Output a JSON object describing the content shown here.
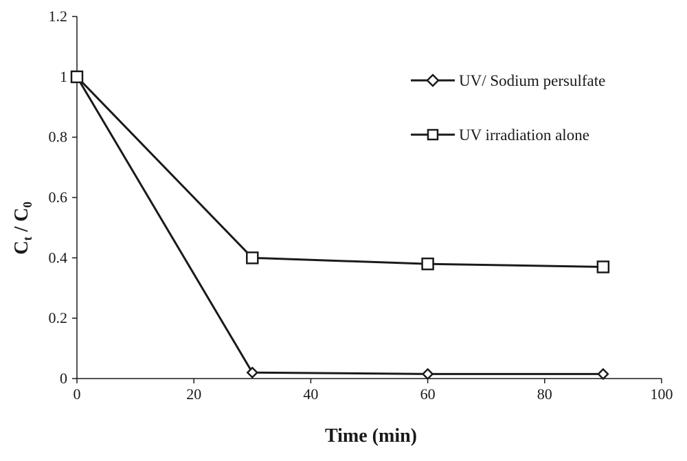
{
  "chart_data": {
    "type": "line",
    "title": "",
    "xlabel": "Time (min)",
    "ylabel": {
      "main": "C",
      "sub1": "t",
      "sep": " / ",
      "main2": "C",
      "sub2": "0"
    },
    "xlim": [
      0,
      100
    ],
    "ylim": [
      0,
      1.2
    ],
    "xticks": [
      "0",
      "20",
      "40",
      "60",
      "80",
      "100"
    ],
    "yticks": [
      "0",
      "0.2",
      "0.4",
      "0.6",
      "0.8",
      "1",
      "1.2"
    ],
    "grid": false,
    "legend_position": "top-right",
    "series": [
      {
        "name": "UV/ Sodium persulfate",
        "marker": "diamond",
        "x": [
          0,
          30,
          60,
          90
        ],
        "y": [
          1.0,
          0.02,
          0.015,
          0.015
        ]
      },
      {
        "name": "UV irradiation alone",
        "marker": "square",
        "x": [
          0,
          30,
          60,
          90
        ],
        "y": [
          1.0,
          0.4,
          0.38,
          0.37
        ]
      }
    ],
    "colors": {
      "ink": "#1a1a1a",
      "marker_fill": "#ffffff"
    }
  }
}
